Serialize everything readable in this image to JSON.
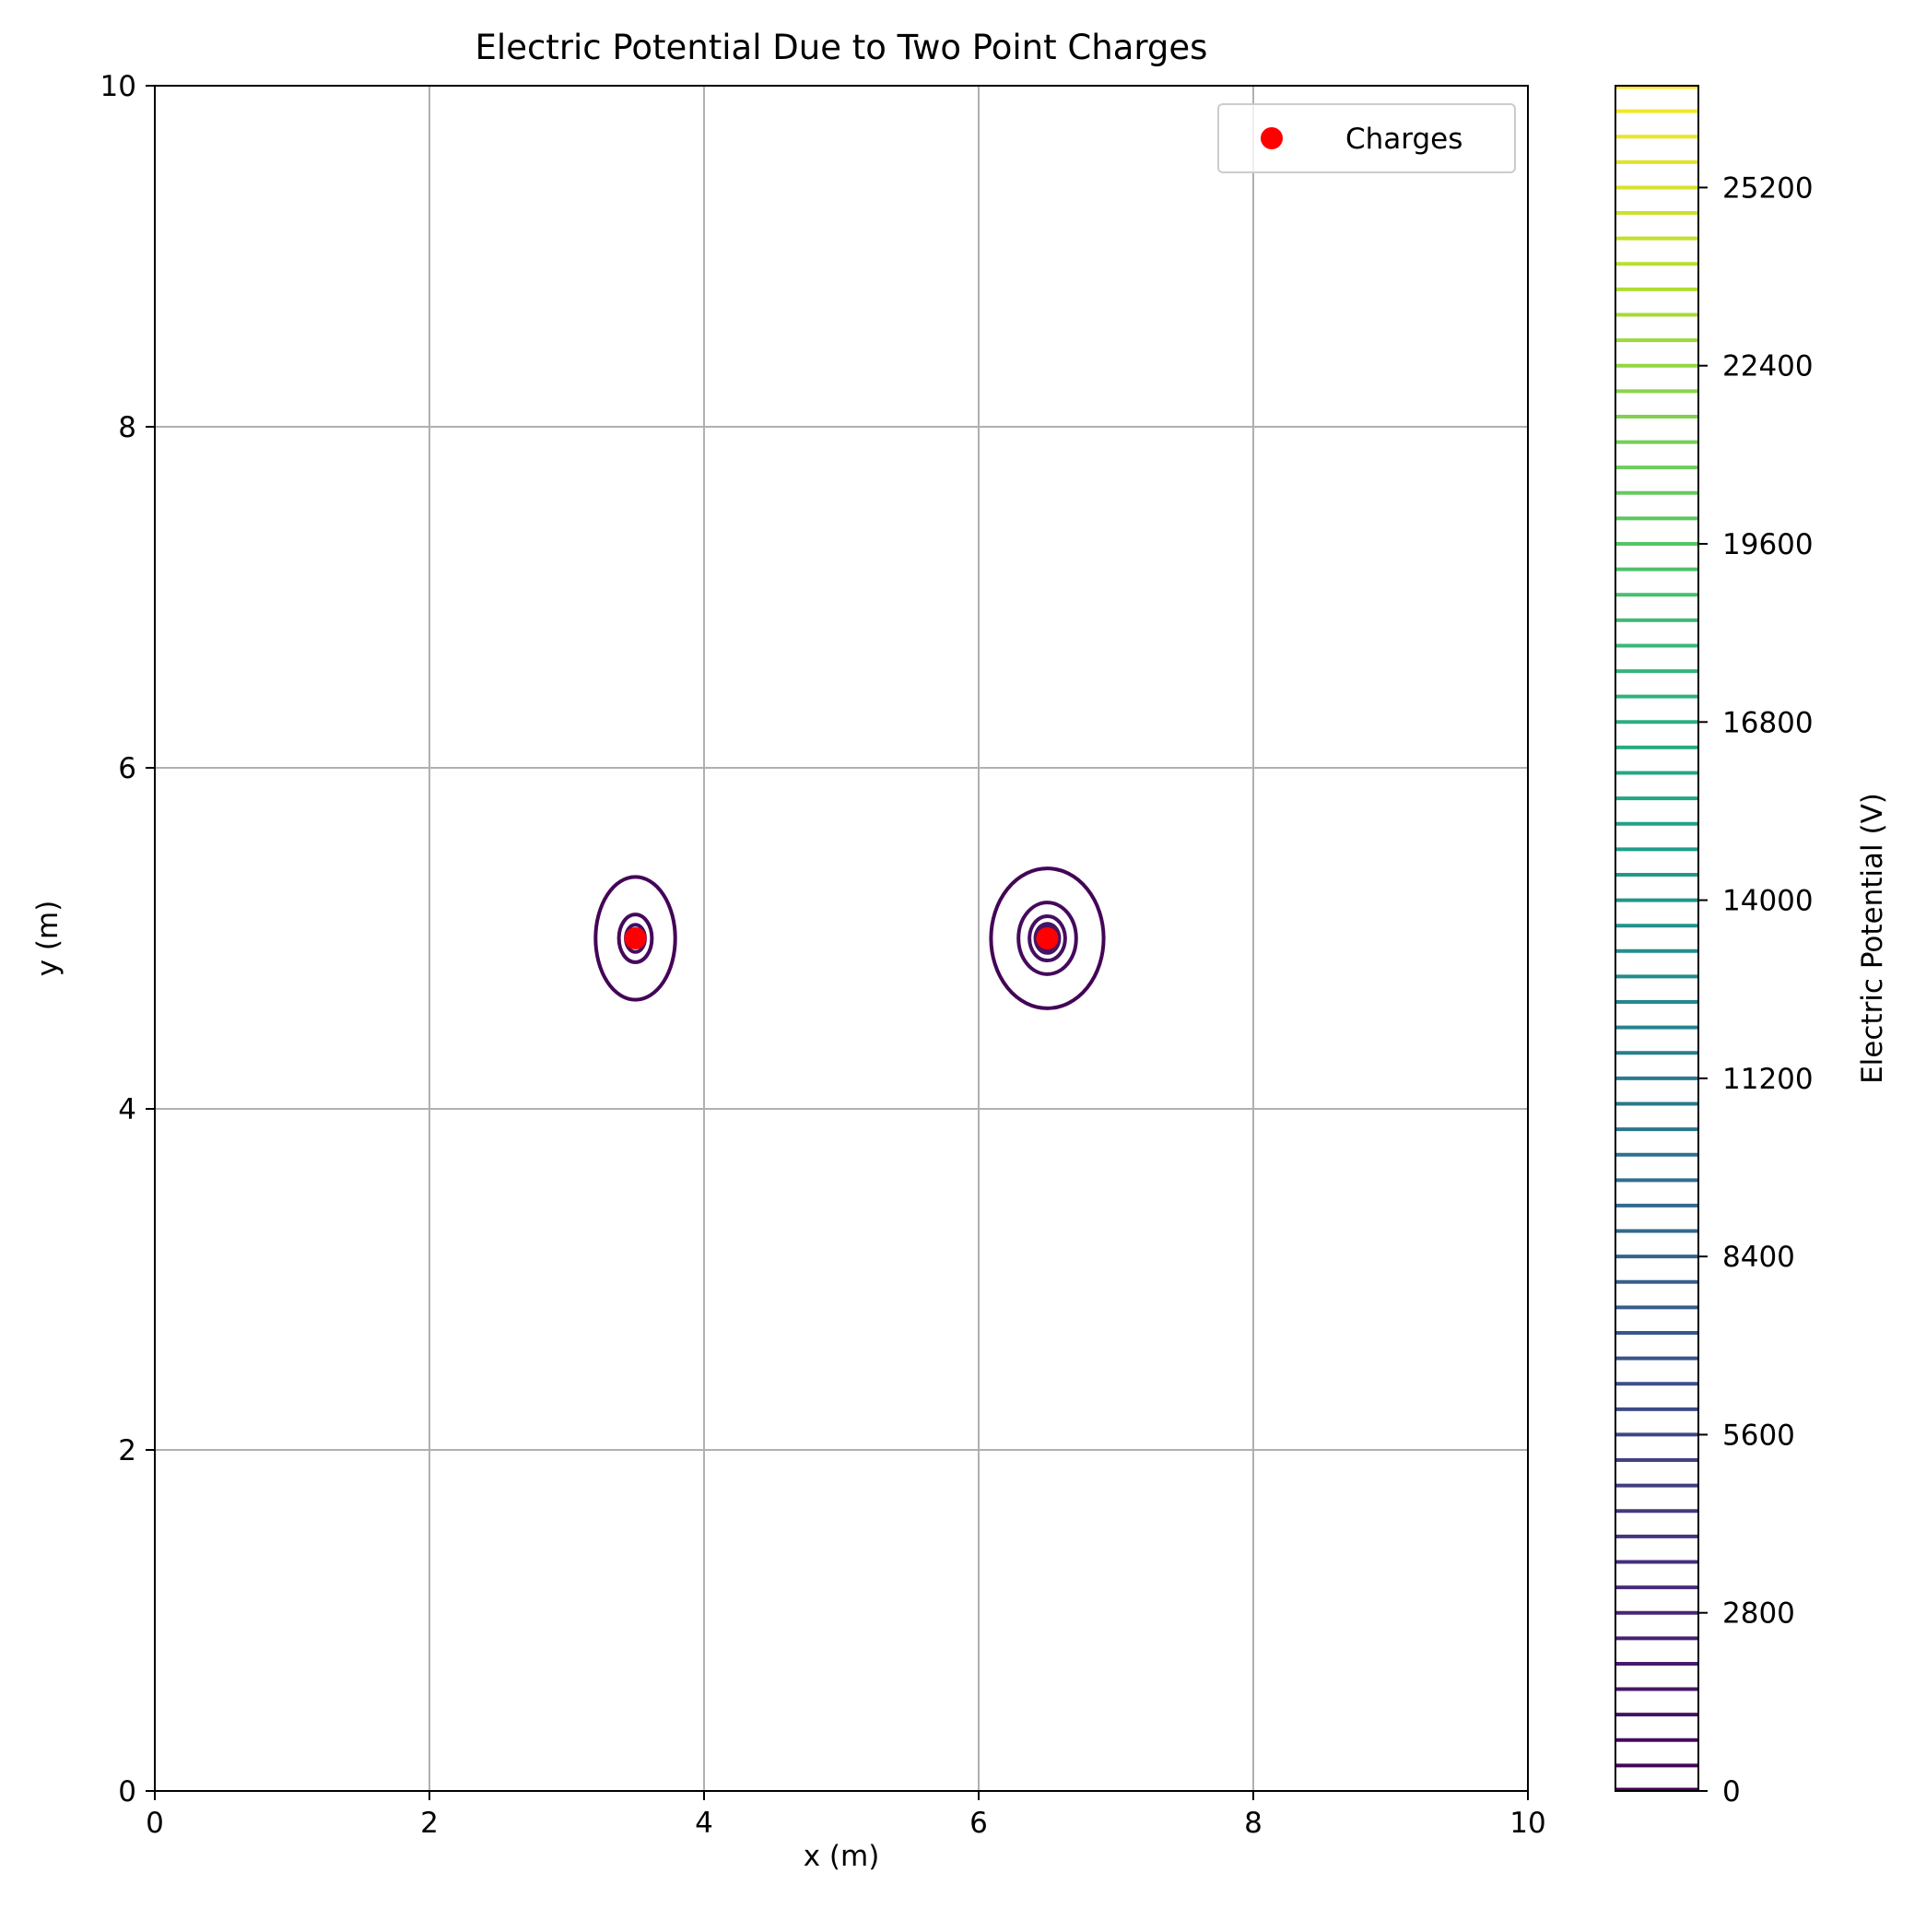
{
  "chart_data": {
    "type": "contour",
    "title": "Electric Potential Due to Two Point Charges",
    "xlabel": "x (m)",
    "ylabel": "y (m)",
    "xlim": [
      0,
      10
    ],
    "ylim": [
      0,
      10
    ],
    "xticks": [
      0,
      2,
      4,
      6,
      8,
      10
    ],
    "yticks": [
      0,
      2,
      4,
      6,
      8,
      10
    ],
    "grid": true,
    "legend": {
      "placement": "upper right",
      "label": "Charges"
    },
    "charges": [
      {
        "x": 3.5,
        "y": 5.0
      },
      {
        "x": 6.5,
        "y": 5.0
      }
    ],
    "contours": [
      {
        "cx": 3.5,
        "cy": 5.0,
        "rx": 0.29,
        "ry": 0.36,
        "level": 0
      },
      {
        "cx": 3.5,
        "cy": 5.0,
        "rx": 0.12,
        "ry": 0.14,
        "level": 1
      },
      {
        "cx": 3.5,
        "cy": 5.0,
        "rx": 0.07,
        "ry": 0.08,
        "level": 2
      },
      {
        "cx": 6.5,
        "cy": 5.0,
        "rx": 0.41,
        "ry": 0.41,
        "level": 0
      },
      {
        "cx": 6.5,
        "cy": 5.0,
        "rx": 0.21,
        "ry": 0.21,
        "level": 1
      },
      {
        "cx": 6.5,
        "cy": 5.0,
        "rx": 0.13,
        "ry": 0.13,
        "level": 2
      },
      {
        "cx": 6.5,
        "cy": 5.0,
        "rx": 0.08,
        "ry": 0.08,
        "level": 3
      },
      {
        "cx": 6.5,
        "cy": 5.0,
        "rx": 0.05,
        "ry": 0.05,
        "level": 4
      }
    ],
    "colorbar": {
      "label": "Electric Potential (V)",
      "colormap": "viridis",
      "range": [
        0,
        26800
      ],
      "level_step": 400,
      "ticks": [
        0,
        2800,
        5600,
        8400,
        11200,
        14000,
        16800,
        19600,
        22400,
        25200
      ]
    },
    "colors": {
      "charge": "#ff0000",
      "grid": "#b0b0b0",
      "axis": "#000000"
    }
  }
}
